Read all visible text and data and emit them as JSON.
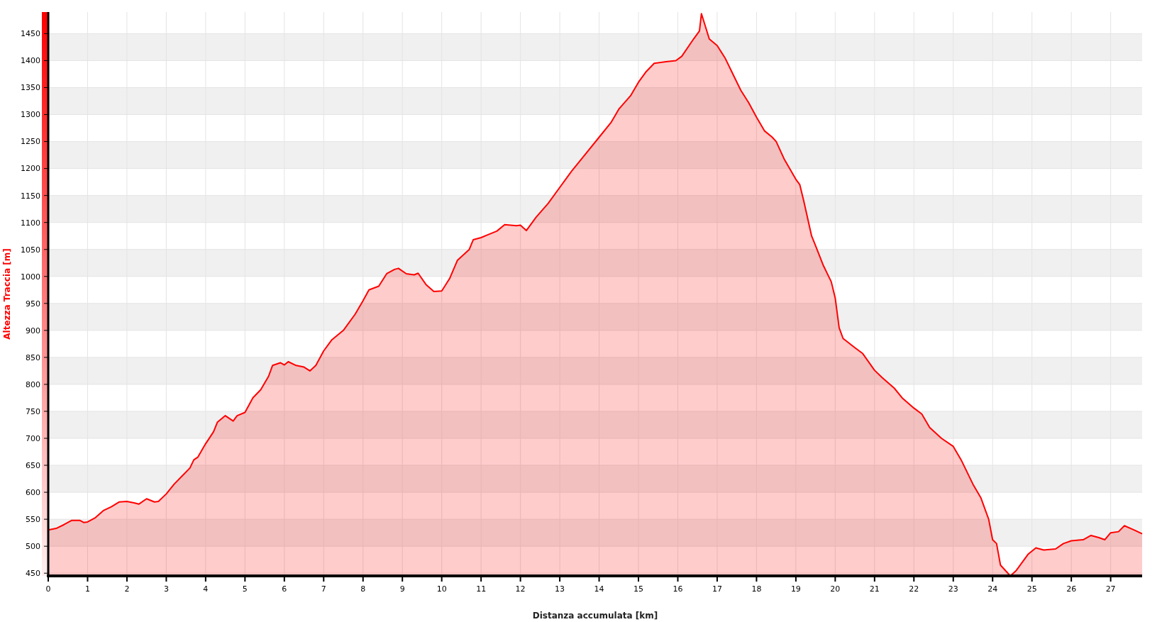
{
  "chart_data": {
    "type": "area",
    "xlabel": "Distanza accumulata [km]",
    "ylabel": "Altezza Traccia [m]",
    "xlim": [
      0,
      27.8
    ],
    "ylim": [
      445,
      1490
    ],
    "xticks": [
      0,
      1,
      2,
      3,
      4,
      5,
      6,
      7,
      8,
      9,
      10,
      11,
      12,
      13,
      14,
      15,
      16,
      17,
      18,
      19,
      20,
      21,
      22,
      23,
      24,
      25,
      26,
      27
    ],
    "yticks": [
      450,
      500,
      550,
      600,
      650,
      700,
      750,
      800,
      850,
      900,
      950,
      1000,
      1050,
      1100,
      1150,
      1200,
      1250,
      1300,
      1350,
      1400,
      1450
    ],
    "grid": true,
    "series": [
      {
        "color": "#ff0000",
        "x": [
          0,
          0.2,
          0.4,
          0.6,
          0.8,
          0.9,
          1.0,
          1.2,
          1.4,
          1.6,
          1.8,
          2.0,
          2.2,
          2.3,
          2.5,
          2.7,
          2.8,
          3.0,
          3.2,
          3.4,
          3.6,
          3.7,
          3.8,
          4.0,
          4.2,
          4.3,
          4.5,
          4.7,
          4.8,
          5.0,
          5.2,
          5.4,
          5.6,
          5.7,
          5.9,
          6.0,
          6.1,
          6.3,
          6.5,
          6.65,
          6.8,
          7.0,
          7.2,
          7.5,
          7.8,
          8.0,
          8.15,
          8.4,
          8.6,
          8.8,
          8.9,
          9.1,
          9.3,
          9.4,
          9.6,
          9.8,
          10.0,
          10.2,
          10.4,
          10.7,
          10.8,
          11.0,
          11.2,
          11.4,
          11.6,
          11.9,
          12.0,
          12.15,
          12.4,
          12.7,
          13.0,
          13.3,
          13.6,
          14.0,
          14.3,
          14.5,
          14.8,
          15.0,
          15.2,
          15.4,
          15.7,
          15.95,
          16.1,
          16.4,
          16.55,
          16.6,
          16.8,
          17.0,
          17.2,
          17.4,
          17.6,
          17.8,
          18.0,
          18.2,
          18.4,
          18.5,
          18.7,
          19.0,
          19.1,
          19.2,
          19.4,
          19.5,
          19.7,
          19.9,
          20.0,
          20.1,
          20.2,
          20.5,
          20.7,
          21.0,
          21.2,
          21.5,
          21.7,
          22.0,
          22.2,
          22.4,
          22.7,
          23.0,
          23.2,
          23.5,
          23.7,
          23.9,
          24.0,
          24.1,
          24.2,
          24.45,
          24.6,
          24.9,
          25.1,
          25.3,
          25.6,
          25.8,
          26.0,
          26.3,
          26.5,
          26.7,
          26.85,
          27.0,
          27.2,
          27.35,
          27.6,
          27.8
        ],
        "values": [
          530,
          533,
          540,
          548,
          548,
          544,
          545,
          553,
          566,
          573,
          582,
          583,
          580,
          578,
          588,
          582,
          583,
          597,
          615,
          630,
          645,
          660,
          665,
          690,
          712,
          730,
          742,
          732,
          742,
          748,
          775,
          790,
          815,
          835,
          840,
          836,
          842,
          835,
          832,
          825,
          835,
          862,
          882,
          900,
          930,
          955,
          975,
          982,
          1005,
          1013,
          1015,
          1005,
          1003,
          1006,
          985,
          972,
          973,
          996,
          1030,
          1050,
          1068,
          1072,
          1078,
          1084,
          1096,
          1094,
          1095,
          1085,
          1110,
          1135,
          1165,
          1195,
          1222,
          1258,
          1285,
          1310,
          1335,
          1360,
          1380,
          1395,
          1398,
          1400,
          1408,
          1440,
          1455,
          1487,
          1440,
          1428,
          1405,
          1375,
          1345,
          1322,
          1295,
          1270,
          1258,
          1250,
          1218,
          1180,
          1170,
          1140,
          1075,
          1057,
          1020,
          990,
          960,
          905,
          885,
          868,
          857,
          826,
          812,
          793,
          775,
          756,
          745,
          720,
          700,
          685,
          660,
          615,
          590,
          550,
          512,
          505,
          465,
          445,
          455,
          485,
          497,
          493,
          495,
          505,
          510,
          512,
          520,
          516,
          512,
          525,
          527,
          538,
          530,
          523
        ]
      }
    ]
  }
}
